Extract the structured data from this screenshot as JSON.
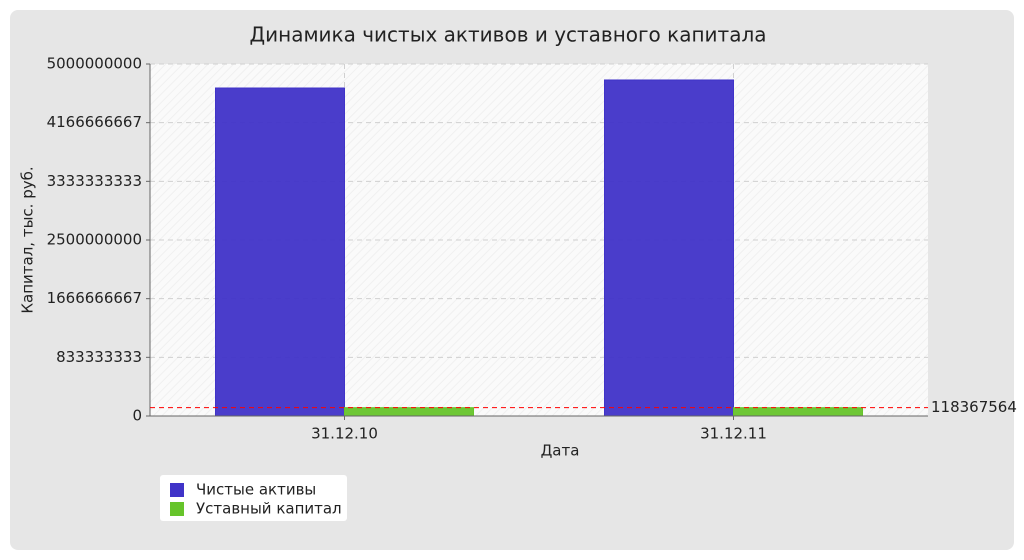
{
  "chart_data": {
    "type": "bar",
    "title": "Динамика чистых активов и уставного капитала",
    "categories": [
      "31.12.10",
      "31.12.11"
    ],
    "series": [
      {
        "name": "Чистые активы",
        "color": "#4033c8",
        "values": [
          4659000000,
          4773000000
        ]
      },
      {
        "name": "Уставный капитал",
        "color": "#66c42a",
        "values": [
          118367564,
          118367564
        ]
      }
    ],
    "ylim": [
      0,
      5000000000
    ],
    "yticks": [
      0,
      833333333,
      1666666667,
      2500000000,
      3333333333,
      4166666667,
      5000000000
    ],
    "xlabel": "Дата",
    "ylabel": "Капитал, тыс. руб.",
    "threshold": 118367564,
    "threshold_color": "#ff0000",
    "grid": true,
    "legend": "bottom-left"
  }
}
